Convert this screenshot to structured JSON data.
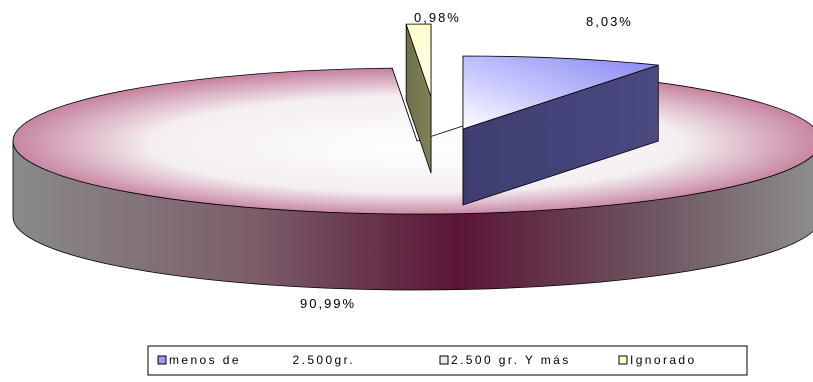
{
  "chart_data": {
    "type": "pie",
    "style": "3d-exploded",
    "categories": [
      "menos de         2.500gr.",
      "2.500 gr. Y más",
      "Ignorado"
    ],
    "values": [
      8.03,
      90.99,
      0.98
    ],
    "data_labels": [
      "8,03%",
      "90,99%",
      "0,98%"
    ],
    "legend": {
      "placement": "bottom",
      "entries": [
        "menos de         2.500gr.",
        "2.500 gr. Y más",
        "Ignorado"
      ]
    },
    "colors": {
      "menos de         2.500gr.": "#9999ff",
      "2.500 gr. Y más": "#993366",
      "Ignorado": "#ffffcc"
    }
  }
}
